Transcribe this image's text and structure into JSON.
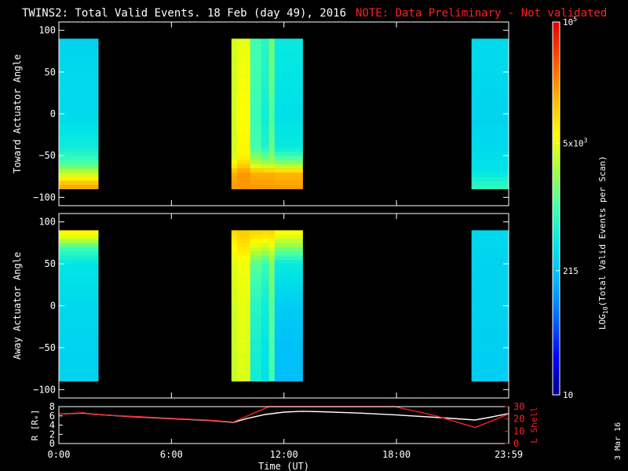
{
  "header": {
    "title": "TWINS2: Total Valid Events. 18 Feb (day  49), 2016",
    "note": "NOTE: Data Preliminary - Not validated",
    "note_color": "#ff2020"
  },
  "footer": {
    "date_stamp": "3 Mar 16"
  },
  "chart_data": [
    {
      "type": "heatmap",
      "panel": "toward",
      "ylabel": "Toward Actuator Angle",
      "ylim": [
        -110,
        110
      ],
      "yticks": [
        -100,
        -50,
        0,
        50,
        100
      ],
      "xlim": [
        0,
        23.983
      ],
      "y_coverage": [
        -90,
        90
      ],
      "scale": "log",
      "segments": [
        {
          "start": 0.0,
          "end": 2.1,
          "columns": [
            {
              "t0": 0.0,
              "t1": 2.1,
              "angles": [
                -90,
                -80,
                -70,
                -60,
                -40,
                0,
                50,
                90
              ],
              "log_values": [
                4.3,
                4.0,
                3.5,
                3.05,
                2.7,
                2.5,
                2.5,
                2.45
              ]
            }
          ]
        },
        {
          "start": 9.2,
          "end": 13.0,
          "columns": [
            {
              "t0": 9.2,
              "t1": 9.5,
              "angles": [
                -90,
                -70,
                -60,
                -50,
                0,
                50,
                90
              ],
              "log_values": [
                4.3,
                4.2,
                3.8,
                3.6,
                3.6,
                3.6,
                3.6
              ]
            },
            {
              "t0": 9.5,
              "t1": 10.2,
              "angles": [
                -90,
                -70,
                -60,
                -50,
                0,
                50,
                90
              ],
              "log_values": [
                4.3,
                4.3,
                4.0,
                3.85,
                3.8,
                3.75,
                3.7
              ]
            },
            {
              "t0": 10.2,
              "t1": 10.8,
              "angles": [
                -90,
                -70,
                -60,
                -40,
                0,
                40,
                90
              ],
              "log_values": [
                4.3,
                4.2,
                3.5,
                3.0,
                2.95,
                3.0,
                3.0
              ]
            },
            {
              "t0": 10.8,
              "t1": 11.2,
              "angles": [
                -90,
                -70,
                -60,
                -40,
                0,
                40,
                90
              ],
              "log_values": [
                4.3,
                4.2,
                3.4,
                2.8,
                2.7,
                2.8,
                2.85
              ]
            },
            {
              "t0": 11.2,
              "t1": 11.5,
              "angles": [
                -90,
                -70,
                -60,
                -40,
                0,
                40,
                90
              ],
              "log_values": [
                4.3,
                4.2,
                3.4,
                3.15,
                3.05,
                3.15,
                3.2
              ]
            },
            {
              "t0": 11.5,
              "t1": 13.0,
              "angles": [
                -90,
                -70,
                -60,
                -40,
                0,
                40,
                90
              ],
              "log_values": [
                4.3,
                4.15,
                3.3,
                2.65,
                2.55,
                2.6,
                2.65
              ]
            }
          ]
        },
        {
          "start": 22.0,
          "end": 23.983,
          "columns": [
            {
              "t0": 22.0,
              "t1": 23.983,
              "angles": [
                -90,
                -80,
                -70,
                -40,
                0,
                50,
                90
              ],
              "log_values": [
                2.9,
                2.8,
                2.6,
                2.5,
                2.45,
                2.5,
                2.5
              ]
            }
          ]
        }
      ]
    },
    {
      "type": "heatmap",
      "panel": "away",
      "ylabel": "Away Actuator Angle",
      "ylim": [
        -110,
        110
      ],
      "yticks": [
        -100,
        -50,
        0,
        50,
        100
      ],
      "xlim": [
        0,
        23.983
      ],
      "y_coverage": [
        -90,
        90
      ],
      "scale": "log",
      "segments": [
        {
          "start": 0.0,
          "end": 2.1,
          "columns": [
            {
              "t0": 0.0,
              "t1": 2.1,
              "angles": [
                -90,
                -50,
                0,
                50,
                70,
                80,
                90
              ],
              "log_values": [
                2.45,
                2.45,
                2.5,
                2.6,
                3.0,
                3.6,
                3.9
              ]
            }
          ]
        },
        {
          "start": 9.2,
          "end": 13.0,
          "columns": [
            {
              "t0": 9.2,
              "t1": 9.5,
              "angles": [
                -90,
                0,
                50,
                80,
                90
              ],
              "log_values": [
                3.55,
                3.6,
                3.65,
                3.9,
                4.0
              ]
            },
            {
              "t0": 9.5,
              "t1": 10.2,
              "angles": [
                -90,
                0,
                50,
                80,
                90
              ],
              "log_values": [
                3.65,
                3.7,
                3.75,
                4.0,
                4.05
              ]
            },
            {
              "t0": 10.2,
              "t1": 10.8,
              "angles": [
                -90,
                -50,
                0,
                50,
                80,
                90
              ],
              "log_values": [
                2.7,
                2.75,
                2.85,
                3.1,
                3.9,
                4.0
              ]
            },
            {
              "t0": 10.8,
              "t1": 11.2,
              "angles": [
                -90,
                -50,
                0,
                50,
                80,
                90
              ],
              "log_values": [
                2.55,
                2.6,
                2.7,
                2.95,
                3.85,
                4.0
              ]
            },
            {
              "t0": 11.2,
              "t1": 11.5,
              "angles": [
                -90,
                -50,
                0,
                50,
                80,
                90
              ],
              "log_values": [
                3.0,
                3.05,
                3.1,
                3.25,
                3.9,
                4.0
              ]
            },
            {
              "t0": 11.5,
              "t1": 13.0,
              "angles": [
                -90,
                -50,
                0,
                50,
                80,
                90
              ],
              "log_values": [
                2.3,
                2.3,
                2.4,
                2.65,
                3.6,
                3.85
              ]
            }
          ]
        },
        {
          "start": 22.0,
          "end": 23.983,
          "columns": [
            {
              "t0": 22.0,
              "t1": 23.983,
              "angles": [
                -90,
                0,
                50,
                90
              ],
              "log_values": [
                2.4,
                2.45,
                2.45,
                2.5
              ]
            }
          ]
        }
      ]
    },
    {
      "type": "line",
      "panel": "orbit",
      "ylabel_left": "R [Rₑ]",
      "ylabel_right": "L Shell",
      "xlabel": "Time (UT)",
      "xlim": [
        0,
        23.983
      ],
      "xticks": [
        0,
        6,
        12,
        18,
        23.983
      ],
      "xtick_labels": [
        "0:00",
        "6:00",
        "12:00",
        "18:00",
        "23:59"
      ],
      "ylim_left": [
        0,
        8
      ],
      "yticks_left": [
        0,
        2,
        4,
        6,
        8
      ],
      "ylim_right": [
        0,
        30
      ],
      "yticks_right": [
        0,
        10,
        20,
        30
      ],
      "series": [
        {
          "axis": "left",
          "color": "#ffffff",
          "x": [
            0,
            1.3,
            2,
            4,
            6,
            8,
            9.3,
            10,
            11,
            12,
            13,
            14,
            16,
            18,
            20,
            22.2,
            23,
            23.983
          ],
          "y": [
            6.4,
            6.6,
            6.3,
            5.8,
            5.4,
            5.0,
            4.6,
            5.4,
            6.3,
            6.8,
            7.0,
            6.9,
            6.6,
            6.2,
            5.7,
            5.1,
            5.7,
            6.5
          ]
        },
        {
          "axis": "right",
          "color": "#ff2020",
          "x": [
            0,
            1.3,
            2,
            4,
            6,
            8,
            9.3,
            11.2,
            17.9,
            20,
            22.2,
            23.983
          ],
          "y": [
            24,
            25,
            23.5,
            22,
            20.5,
            19,
            17.5,
            30,
            30,
            23,
            13,
            24
          ]
        }
      ]
    }
  ],
  "colorbar": {
    "label_main": "LOG",
    "label_sub": "10",
    "label_rest": "(Total Valid  Events per Scan)",
    "scale": "log",
    "range": [
      10,
      100000
    ],
    "ticks": [
      {
        "value": 10,
        "text": "10",
        "exp": ""
      },
      {
        "value": 215,
        "text": "215",
        "exp": ""
      },
      {
        "value": 5000,
        "text": "5x10",
        "exp": "3"
      },
      {
        "value": 100000,
        "text": "10",
        "exp": "5"
      }
    ],
    "colors": [
      "#00008c",
      "#0000ff",
      "#0064ff",
      "#00b4ff",
      "#00e6e6",
      "#40ffb0",
      "#a0ff40",
      "#ffff00",
      "#ffb000",
      "#ff5000",
      "#e00000"
    ]
  }
}
